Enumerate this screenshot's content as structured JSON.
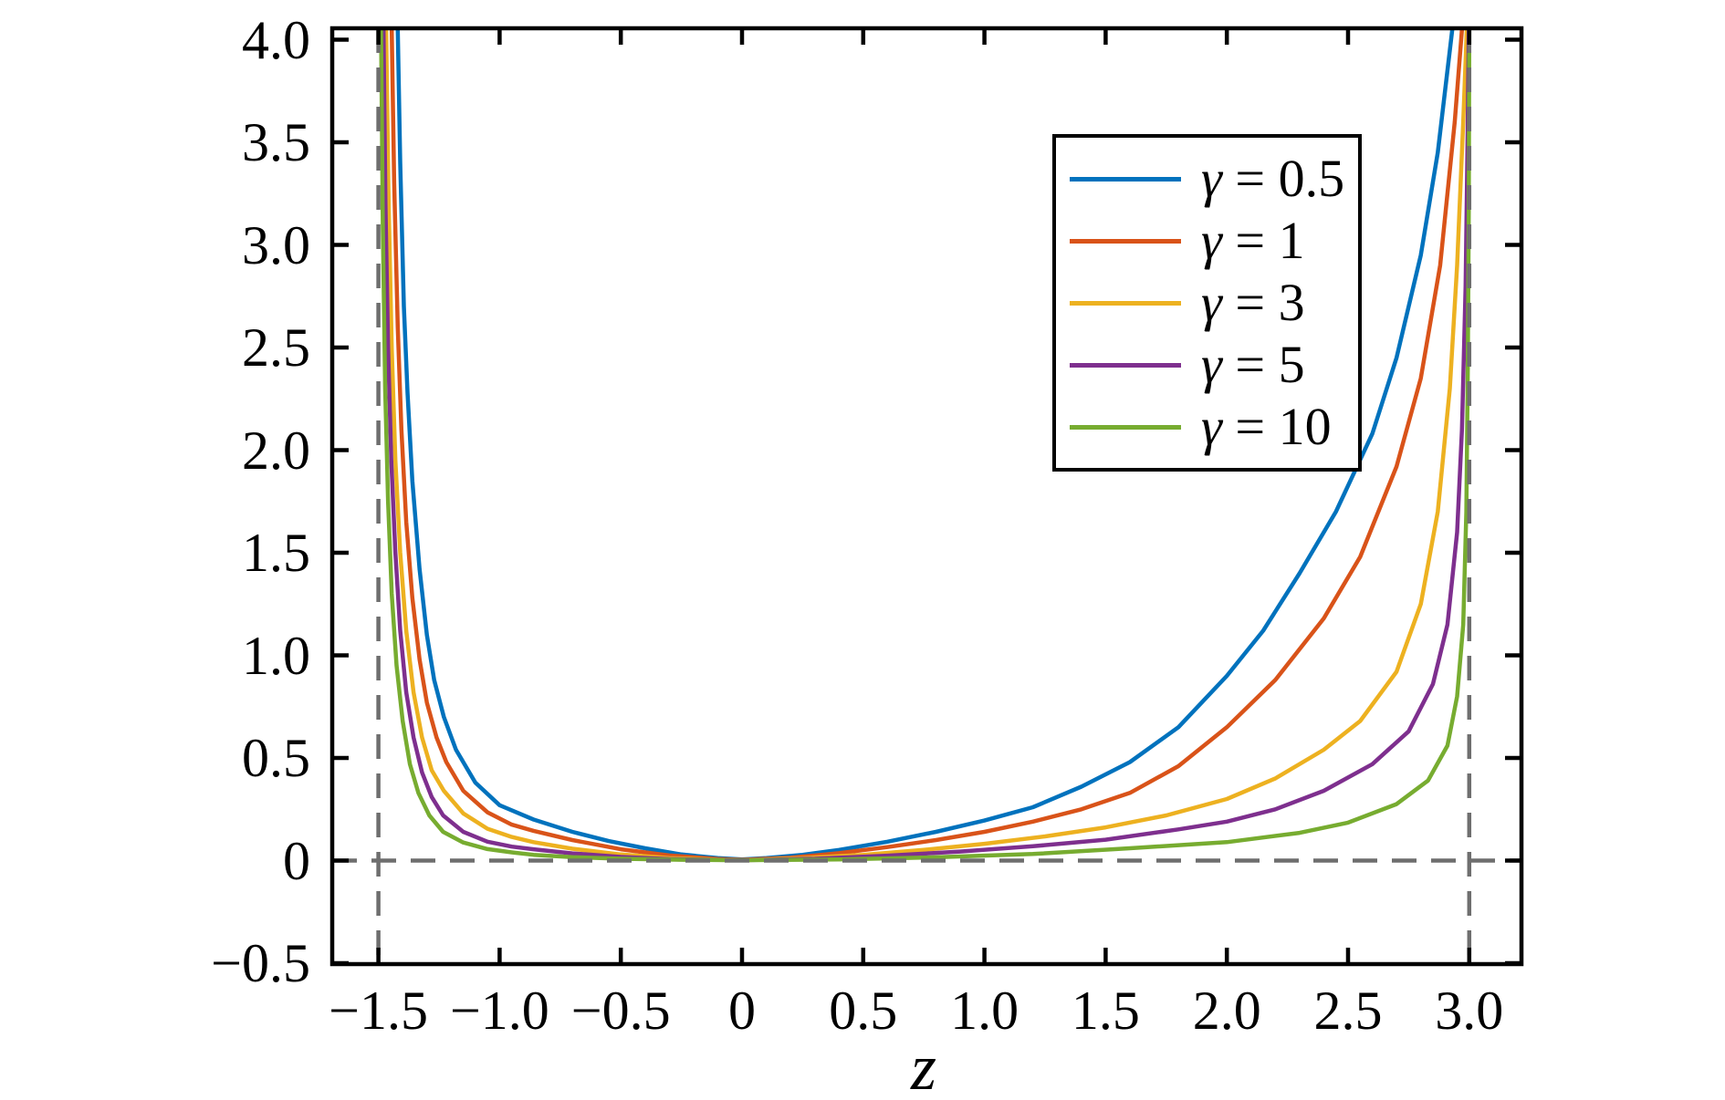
{
  "chart_data": {
    "type": "line",
    "title": "",
    "xlabel": "z",
    "ylabel": "",
    "xlim": [
      -1.6905,
      3.2154
    ],
    "ylim": [
      -0.5044,
      4.0556
    ],
    "grid": false,
    "legend_position": "upper right inside",
    "colors": {
      "axis": "#000000",
      "guide": "#6e6e6e",
      "background": "#ffffff"
    },
    "guides": {
      "vlines": [
        -1.5,
        3.0
      ],
      "hlines": [
        0
      ],
      "style": "dashed"
    },
    "xticks": [
      {
        "v": -1.5,
        "label": "−1.5"
      },
      {
        "v": -1.0,
        "label": "−1.0"
      },
      {
        "v": -0.5,
        "label": "−0.5"
      },
      {
        "v": 0,
        "label": "0"
      },
      {
        "v": 0.5,
        "label": "0.5"
      },
      {
        "v": 1.0,
        "label": "1.0"
      },
      {
        "v": 1.5,
        "label": "1.5"
      },
      {
        "v": 2.0,
        "label": "2.0"
      },
      {
        "v": 2.5,
        "label": "2.5"
      },
      {
        "v": 3.0,
        "label": "3.0"
      }
    ],
    "yticks": [
      {
        "v": 4.0,
        "label": "4.0"
      },
      {
        "v": 3.5,
        "label": "3.5"
      },
      {
        "v": 3.0,
        "label": "3.0"
      },
      {
        "v": 2.5,
        "label": "2.5"
      },
      {
        "v": 2.0,
        "label": "2.0"
      },
      {
        "v": 1.5,
        "label": "1.5"
      },
      {
        "v": 1.0,
        "label": "1.0"
      },
      {
        "v": 0.5,
        "label": "0.5"
      },
      {
        "v": 0,
        "label": "0"
      },
      {
        "v": -0.5,
        "label": "−0.5"
      }
    ],
    "series": [
      {
        "name": "γ = 0.5",
        "gamma": 0.5,
        "color": "#0072BD",
        "points": [
          [
            -1.42,
            4.05
          ],
          [
            -1.41,
            3.4
          ],
          [
            -1.395,
            2.7
          ],
          [
            -1.38,
            2.28
          ],
          [
            -1.36,
            1.85
          ],
          [
            -1.33,
            1.42
          ],
          [
            -1.3,
            1.1
          ],
          [
            -1.27,
            0.88
          ],
          [
            -1.23,
            0.7
          ],
          [
            -1.18,
            0.54
          ],
          [
            -1.1,
            0.38
          ],
          [
            -1.0,
            0.27
          ],
          [
            -0.86,
            0.2
          ],
          [
            -0.7,
            0.14
          ],
          [
            -0.55,
            0.095
          ],
          [
            -0.4,
            0.06
          ],
          [
            -0.25,
            0.03
          ],
          [
            -0.1,
            0.012
          ],
          [
            0,
            0.006
          ],
          [
            0.1,
            0.012
          ],
          [
            0.25,
            0.028
          ],
          [
            0.4,
            0.052
          ],
          [
            0.6,
            0.092
          ],
          [
            0.8,
            0.14
          ],
          [
            1.0,
            0.195
          ],
          [
            1.2,
            0.26
          ],
          [
            1.4,
            0.36
          ],
          [
            1.6,
            0.48
          ],
          [
            1.8,
            0.65
          ],
          [
            2.0,
            0.9
          ],
          [
            2.15,
            1.12
          ],
          [
            2.3,
            1.4
          ],
          [
            2.45,
            1.7
          ],
          [
            2.6,
            2.08
          ],
          [
            2.7,
            2.45
          ],
          [
            2.8,
            2.95
          ],
          [
            2.87,
            3.45
          ],
          [
            2.93,
            4.05
          ]
        ]
      },
      {
        "name": "γ = 1",
        "gamma": 1,
        "color": "#D95319",
        "points": [
          [
            -1.445,
            4.05
          ],
          [
            -1.435,
            3.3
          ],
          [
            -1.42,
            2.6
          ],
          [
            -1.405,
            2.1
          ],
          [
            -1.385,
            1.65
          ],
          [
            -1.36,
            1.28
          ],
          [
            -1.33,
            0.98
          ],
          [
            -1.3,
            0.77
          ],
          [
            -1.26,
            0.6
          ],
          [
            -1.22,
            0.48
          ],
          [
            -1.15,
            0.34
          ],
          [
            -1.05,
            0.235
          ],
          [
            -0.95,
            0.175
          ],
          [
            -0.86,
            0.145
          ],
          [
            -0.7,
            0.1
          ],
          [
            -0.5,
            0.055
          ],
          [
            -0.3,
            0.025
          ],
          [
            -0.1,
            0.008
          ],
          [
            0,
            0.004
          ],
          [
            0.2,
            0.014
          ],
          [
            0.4,
            0.036
          ],
          [
            0.6,
            0.066
          ],
          [
            0.8,
            0.1
          ],
          [
            1.0,
            0.14
          ],
          [
            1.2,
            0.19
          ],
          [
            1.4,
            0.25
          ],
          [
            1.6,
            0.33
          ],
          [
            1.8,
            0.46
          ],
          [
            2.0,
            0.65
          ],
          [
            2.2,
            0.88
          ],
          [
            2.4,
            1.18
          ],
          [
            2.55,
            1.48
          ],
          [
            2.7,
            1.92
          ],
          [
            2.8,
            2.35
          ],
          [
            2.88,
            2.9
          ],
          [
            2.94,
            3.6
          ],
          [
            2.97,
            4.05
          ]
        ]
      },
      {
        "name": "γ = 3",
        "gamma": 3,
        "color": "#EDB120",
        "points": [
          [
            -1.468,
            4.05
          ],
          [
            -1.458,
            3.2
          ],
          [
            -1.445,
            2.5
          ],
          [
            -1.43,
            1.95
          ],
          [
            -1.41,
            1.5
          ],
          [
            -1.385,
            1.12
          ],
          [
            -1.355,
            0.82
          ],
          [
            -1.32,
            0.6
          ],
          [
            -1.28,
            0.44
          ],
          [
            -1.23,
            0.34
          ],
          [
            -1.15,
            0.23
          ],
          [
            -1.05,
            0.155
          ],
          [
            -0.95,
            0.115
          ],
          [
            -0.86,
            0.09
          ],
          [
            -0.7,
            0.058
          ],
          [
            -0.5,
            0.03
          ],
          [
            -0.3,
            0.012
          ],
          [
            -0.1,
            0.004
          ],
          [
            0,
            0.002
          ],
          [
            0.25,
            0.012
          ],
          [
            0.5,
            0.028
          ],
          [
            0.75,
            0.052
          ],
          [
            1.0,
            0.082
          ],
          [
            1.25,
            0.118
          ],
          [
            1.5,
            0.162
          ],
          [
            1.75,
            0.22
          ],
          [
            2.0,
            0.3
          ],
          [
            2.2,
            0.4
          ],
          [
            2.4,
            0.54
          ],
          [
            2.55,
            0.68
          ],
          [
            2.7,
            0.92
          ],
          [
            2.8,
            1.25
          ],
          [
            2.87,
            1.7
          ],
          [
            2.92,
            2.3
          ],
          [
            2.95,
            2.9
          ],
          [
            2.975,
            3.6
          ],
          [
            2.99,
            4.05
          ]
        ]
      },
      {
        "name": "γ = 5",
        "gamma": 5,
        "color": "#7E2F8E",
        "points": [
          [
            -1.479,
            4.05
          ],
          [
            -1.471,
            3.2
          ],
          [
            -1.46,
            2.5
          ],
          [
            -1.447,
            1.95
          ],
          [
            -1.43,
            1.5
          ],
          [
            -1.41,
            1.12
          ],
          [
            -1.385,
            0.82
          ],
          [
            -1.355,
            0.6
          ],
          [
            -1.32,
            0.43
          ],
          [
            -1.28,
            0.31
          ],
          [
            -1.233,
            0.22
          ],
          [
            -1.15,
            0.14
          ],
          [
            -1.05,
            0.092
          ],
          [
            -0.95,
            0.068
          ],
          [
            -0.86,
            0.055
          ],
          [
            -0.7,
            0.035
          ],
          [
            -0.5,
            0.018
          ],
          [
            -0.3,
            0.007
          ],
          [
            0,
            0.002
          ],
          [
            0.3,
            0.009
          ],
          [
            0.6,
            0.024
          ],
          [
            0.9,
            0.044
          ],
          [
            1.2,
            0.07
          ],
          [
            1.5,
            0.102
          ],
          [
            1.8,
            0.152
          ],
          [
            2.0,
            0.19
          ],
          [
            2.2,
            0.25
          ],
          [
            2.4,
            0.34
          ],
          [
            2.6,
            0.47
          ],
          [
            2.75,
            0.63
          ],
          [
            2.85,
            0.86
          ],
          [
            2.91,
            1.15
          ],
          [
            2.95,
            1.6
          ],
          [
            2.97,
            2.1
          ],
          [
            2.985,
            2.8
          ],
          [
            2.993,
            3.5
          ],
          [
            2.998,
            4.05
          ]
        ]
      },
      {
        "name": "γ = 10",
        "gamma": 10,
        "color": "#77AC30",
        "points": [
          [
            -1.489,
            4.05
          ],
          [
            -1.482,
            3.1
          ],
          [
            -1.472,
            2.3
          ],
          [
            -1.46,
            1.75
          ],
          [
            -1.445,
            1.3
          ],
          [
            -1.425,
            0.95
          ],
          [
            -1.4,
            0.68
          ],
          [
            -1.37,
            0.47
          ],
          [
            -1.335,
            0.33
          ],
          [
            -1.29,
            0.22
          ],
          [
            -1.233,
            0.14
          ],
          [
            -1.15,
            0.088
          ],
          [
            -1.05,
            0.056
          ],
          [
            -0.95,
            0.04
          ],
          [
            -0.86,
            0.028
          ],
          [
            -0.7,
            0.017
          ],
          [
            -0.5,
            0.009
          ],
          [
            -0.25,
            0.004
          ],
          [
            0,
            0.002
          ],
          [
            0.4,
            0.006
          ],
          [
            0.8,
            0.016
          ],
          [
            1.2,
            0.032
          ],
          [
            1.6,
            0.06
          ],
          [
            2.0,
            0.09
          ],
          [
            2.3,
            0.135
          ],
          [
            2.5,
            0.185
          ],
          [
            2.7,
            0.275
          ],
          [
            2.83,
            0.39
          ],
          [
            2.91,
            0.56
          ],
          [
            2.95,
            0.8
          ],
          [
            2.975,
            1.15
          ],
          [
            2.988,
            1.7
          ],
          [
            2.994,
            2.4
          ],
          [
            2.998,
            3.2
          ],
          [
            3.0,
            4.05
          ]
        ]
      }
    ]
  }
}
